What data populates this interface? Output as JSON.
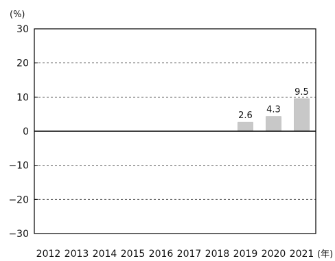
{
  "chart_data": {
    "type": "bar",
    "categories": [
      "2012",
      "2013",
      "2014",
      "2015",
      "2016",
      "2017",
      "2018",
      "2019",
      "2020",
      "2021"
    ],
    "values": [
      null,
      null,
      null,
      null,
      null,
      null,
      null,
      2.6,
      4.3,
      9.5
    ],
    "data_labels": [
      "",
      "",
      "",
      "",
      "",
      "",
      "",
      "2.6",
      "4.3",
      "9.5"
    ],
    "ylim": [
      -30,
      30
    ],
    "yticks": [
      30,
      20,
      10,
      0,
      -10,
      -20,
      -30
    ],
    "ytick_labels": [
      "30",
      "20",
      "10",
      "0",
      "−10",
      "−20",
      "−30"
    ],
    "ylabel": "(%)",
    "xlabel": "(年)",
    "grid": true,
    "bar_color": "#c8c8c8",
    "axis_color": "#000000",
    "grid_color": "#555555"
  }
}
